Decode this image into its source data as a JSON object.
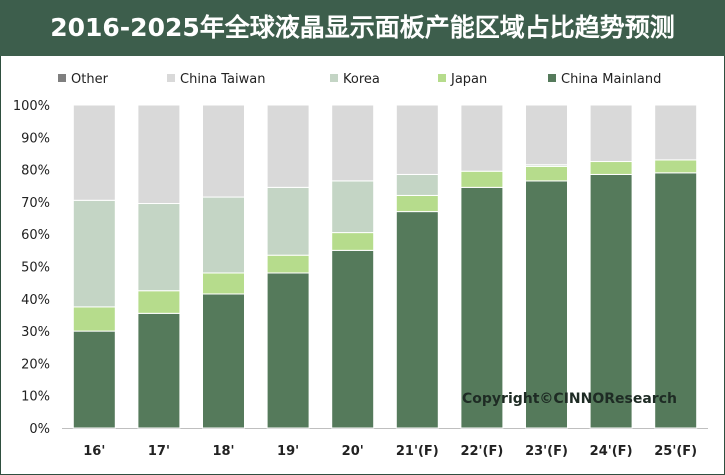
{
  "header": {
    "title": "2016-2025年全球液晶显示面板产能区域占比趋势预测"
  },
  "watermark": "Copyright©CINNOResearch",
  "chart_data": {
    "type": "bar",
    "stacked": true,
    "title": "2016-2025年全球液晶显示面板产能区域占比趋势预测",
    "categories": [
      "16'",
      "17'",
      "18'",
      "19'",
      "20'",
      "21'(F)",
      "22'(F)",
      "23'(F)",
      "24'(F)",
      "25'(F)"
    ],
    "series": [
      {
        "name": "China Mainland",
        "color": "#557a5b",
        "values": [
          30,
          35.5,
          41.5,
          48,
          55,
          67,
          74.5,
          76.5,
          78.5,
          79
        ]
      },
      {
        "name": "Japan",
        "color": "#b6dc8c",
        "values": [
          7.5,
          7,
          6.5,
          5.5,
          5.5,
          5,
          5,
          4.5,
          4,
          4
        ]
      },
      {
        "name": "Korea",
        "color": "#c4d5c5",
        "values": [
          33,
          27,
          23.5,
          21,
          16,
          6.5,
          0,
          0.5,
          0,
          0
        ]
      },
      {
        "name": "China Taiwan",
        "color": "#d9d9d9",
        "values": [
          29.5,
          30.5,
          28.5,
          25.5,
          23.5,
          21.5,
          20.5,
          18.5,
          17.5,
          17
        ]
      },
      {
        "name": "Other",
        "color": "#7f7f7f",
        "values": [
          0,
          0,
          0,
          0,
          0,
          0,
          0,
          0,
          0,
          0
        ]
      }
    ],
    "legend_order": [
      "Other",
      "China Taiwan",
      "Korea",
      "Japan",
      "China Mainland"
    ],
    "y_ticks": [
      "0%",
      "10%",
      "20%",
      "30%",
      "40%",
      "50%",
      "60%",
      "70%",
      "80%",
      "90%",
      "100%"
    ],
    "ylim": [
      0,
      100
    ],
    "grid": false,
    "legend_position": "top"
  }
}
